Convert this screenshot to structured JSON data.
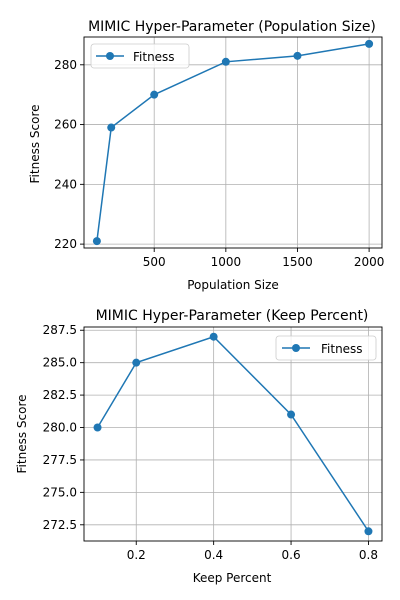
{
  "chart_data": [
    {
      "type": "line",
      "title": "MIMIC Hyper-Parameter (Population Size)",
      "xlabel": "Population Size",
      "ylabel": "Fitness Score",
      "xlim": [
        10,
        2090
      ],
      "ylim": [
        218.7,
        289.3
      ],
      "xticks": [
        500,
        1000,
        1500,
        2000
      ],
      "xtick_labels": [
        "500",
        "1000",
        "1500",
        "2000"
      ],
      "yticks": [
        220,
        240,
        260,
        280
      ],
      "ytick_labels": [
        "220",
        "240",
        "260",
        "280"
      ],
      "grid": true,
      "legend_position": "upper-left",
      "series": [
        {
          "name": "Fitness",
          "color": "#1f77b4",
          "x": [
            100,
            200,
            500,
            1000,
            1500,
            2000
          ],
          "values": [
            221,
            259,
            270,
            281,
            283,
            287
          ]
        }
      ]
    },
    {
      "type": "line",
      "title": "MIMIC Hyper-Parameter (Keep Percent)",
      "xlabel": "Keep Percent",
      "ylabel": "Fitness Score",
      "xlim": [
        0.065,
        0.835
      ],
      "ylim": [
        271.25,
        287.75
      ],
      "xticks": [
        0.2,
        0.4,
        0.6,
        0.8
      ],
      "xtick_labels": [
        "0.2",
        "0.4",
        "0.6",
        "0.8"
      ],
      "yticks": [
        272.5,
        275.0,
        277.5,
        280.0,
        282.5,
        285.0,
        287.5
      ],
      "ytick_labels": [
        "272.5",
        "275.0",
        "277.5",
        "280.0",
        "282.5",
        "285.0",
        "287.5"
      ],
      "grid": true,
      "legend_position": "upper-right",
      "series": [
        {
          "name": "Fitness",
          "color": "#1f77b4",
          "x": [
            0.1,
            0.2,
            0.4,
            0.6,
            0.8
          ],
          "values": [
            280,
            285,
            287,
            281,
            272
          ]
        }
      ]
    }
  ]
}
